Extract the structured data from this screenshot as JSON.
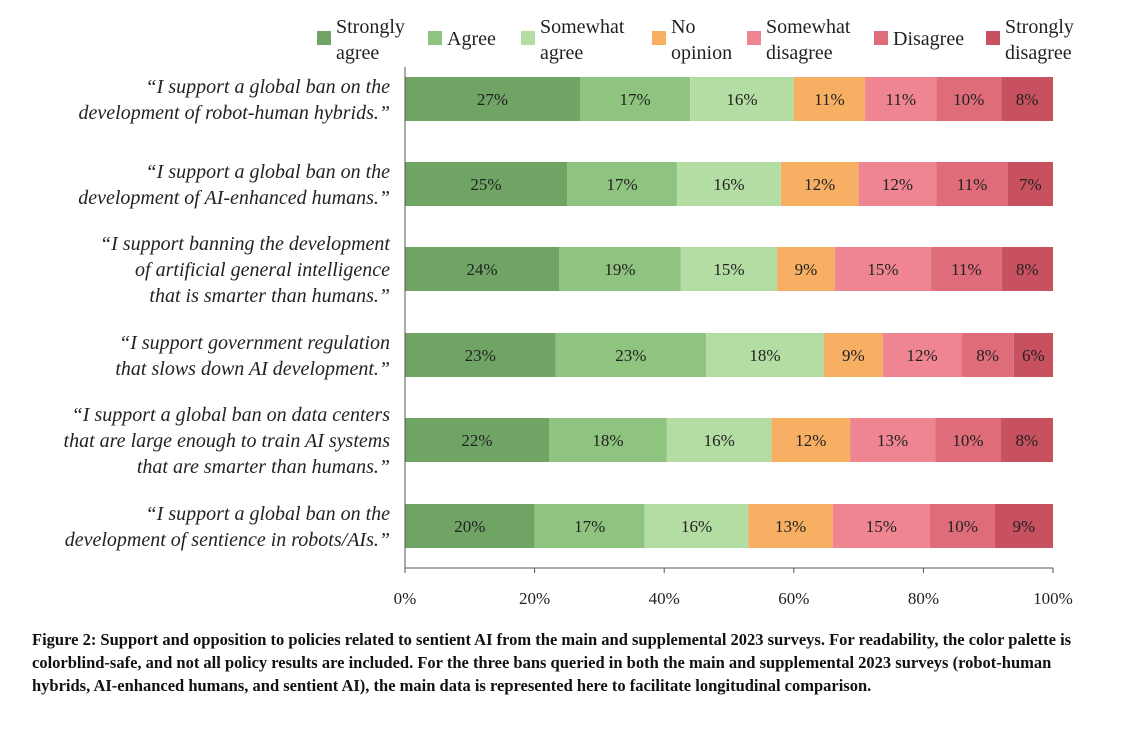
{
  "chart_data": {
    "type": "bar",
    "orientation": "horizontal",
    "stacked": true,
    "categories": [
      [
        "“I support a global ban on the",
        "development of robot-human hybrids.”"
      ],
      [
        "“I support a global ban on the",
        "development of AI-enhanced humans.”"
      ],
      [
        "“I support banning the development",
        "of artificial general intelligence",
        "that is smarter than humans.”"
      ],
      [
        "“I support government regulation",
        "that slows down AI development.”"
      ],
      [
        "“I support a global ban on data centers",
        "that are large enough to train AI systems",
        "that are smarter than humans.”"
      ],
      [
        "“I support a global ban on the",
        "development of sentience in robots/AIs.”"
      ]
    ],
    "series": [
      {
        "name": [
          "Strongly",
          "agree"
        ],
        "color": "#6fa465",
        "values": [
          27,
          25,
          24,
          23,
          22,
          20
        ]
      },
      {
        "name": [
          "Agree"
        ],
        "color": "#8fc480",
        "values": [
          17,
          17,
          19,
          23,
          18,
          17
        ]
      },
      {
        "name": [
          "Somewhat",
          "agree"
        ],
        "color": "#b3dda3",
        "values": [
          16,
          16,
          15,
          18,
          16,
          16
        ]
      },
      {
        "name": [
          "No",
          "opinion"
        ],
        "color": "#f7b063",
        "values": [
          11,
          12,
          9,
          9,
          12,
          13
        ]
      },
      {
        "name": [
          "Somewhat",
          "disagree"
        ],
        "color": "#ef8590",
        "values": [
          11,
          12,
          15,
          12,
          13,
          15
        ]
      },
      {
        "name": [
          "Disagree"
        ],
        "color": "#df6c79",
        "values": [
          10,
          11,
          11,
          8,
          10,
          10
        ]
      },
      {
        "name": [
          "Strongly",
          "disagree"
        ],
        "color": "#c8515f",
        "values": [
          8,
          7,
          8,
          6,
          8,
          9
        ]
      }
    ],
    "value_suffix": "%",
    "xlim": [
      0,
      100
    ],
    "xticks": [
      "0%",
      "20%",
      "40%",
      "60%",
      "80%",
      "100%"
    ],
    "legend_position": "top",
    "grid": false
  },
  "caption": "Figure 2: Support and opposition to policies related to sentient AI from the main and supplemental 2023 surveys. For readability, the color palette is colorblind-safe, and not all policy results are included. For the three bans queried in both the main and supplemental 2023 surveys (robot-human hybrids, AI-enhanced humans, and sentient AI), the main data is represented here to facilitate longitudinal comparison."
}
